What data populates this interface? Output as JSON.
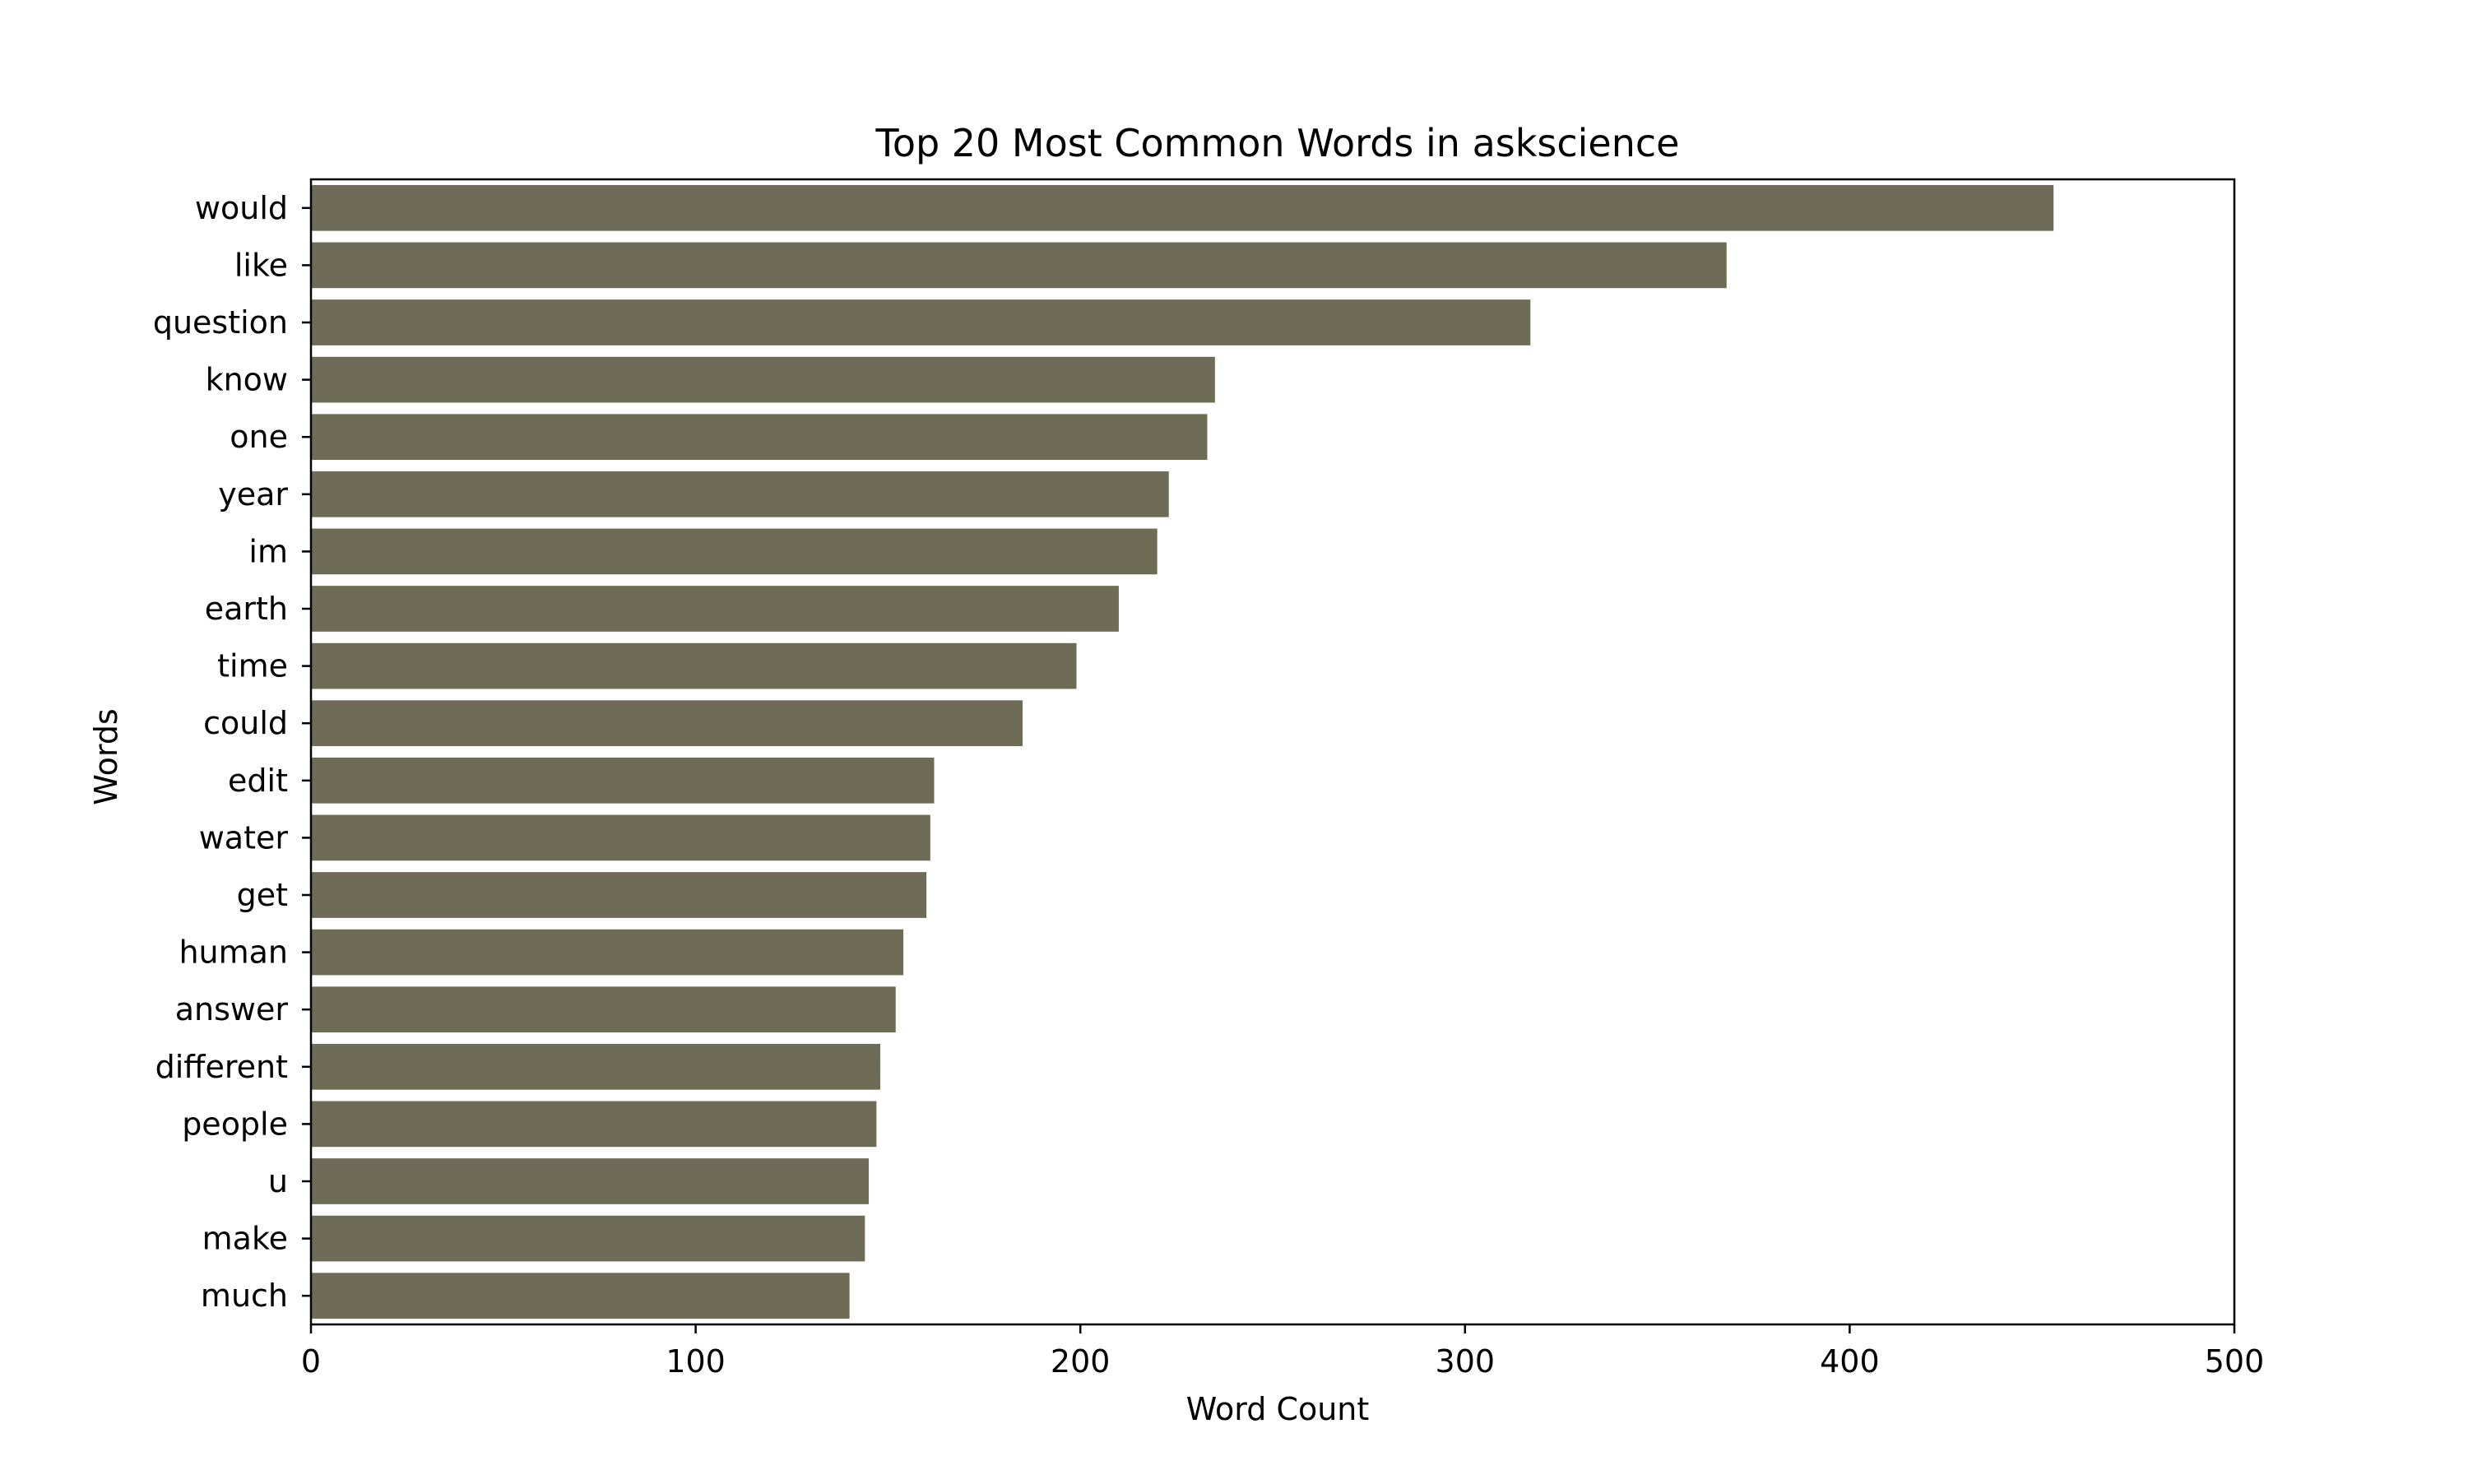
{
  "chart_data": {
    "type": "bar",
    "orientation": "horizontal",
    "title": "Top 20 Most Common Words in askscience",
    "xlabel": "Word Count",
    "ylabel": "Words",
    "xlim": [
      0,
      500
    ],
    "xticks": [
      0,
      100,
      200,
      300,
      400,
      500
    ],
    "grid": false,
    "legend": "none",
    "bar_color": "#6e6b56",
    "categories": [
      "would",
      "like",
      "question",
      "know",
      "one",
      "year",
      "im",
      "earth",
      "time",
      "could",
      "edit",
      "water",
      "get",
      "human",
      "answer",
      "different",
      "people",
      "u",
      "make",
      "much"
    ],
    "values": [
      453,
      368,
      317,
      235,
      233,
      223,
      220,
      210,
      199,
      185,
      162,
      161,
      160,
      154,
      152,
      148,
      147,
      145,
      144,
      140
    ]
  }
}
